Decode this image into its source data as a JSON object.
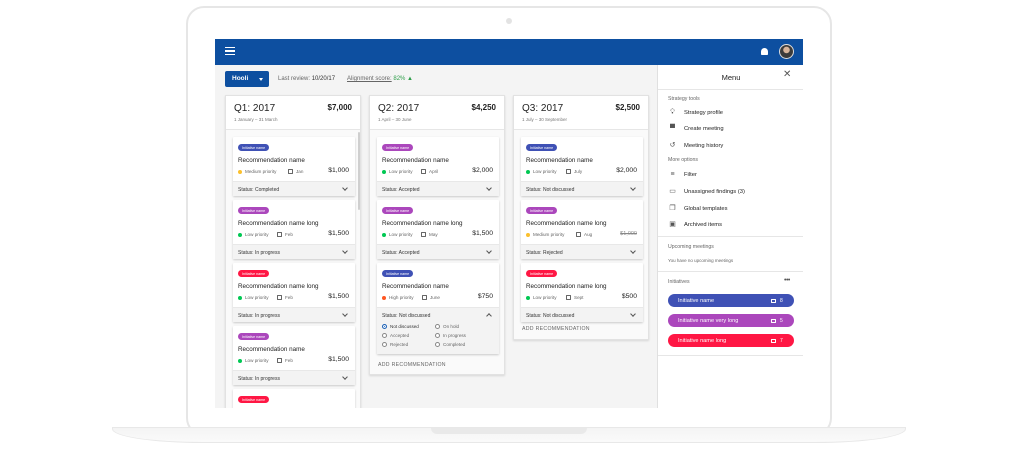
{
  "app": {
    "org_button": "Hooli",
    "last_review_label": "Last review:",
    "last_review_value": "10/20/17",
    "alignment_label": "Alignment score:",
    "alignment_value": "82% ▲",
    "colors": {
      "appbar": "#0d4fa0",
      "blue_chip": "#3f51b5",
      "purple_chip": "#ab47bc",
      "red_chip": "#ff1744",
      "priority_medium": "#fbc02d",
      "priority_low": "#00c853",
      "priority_high": "#ff5722"
    }
  },
  "quarters": [
    {
      "title": "Q1: 2017",
      "amount": "$7,000",
      "range": "1 January – 31 March",
      "cards": [
        {
          "initiative": "Initiative name",
          "name": "Recommendation name",
          "priority": "Medium priority",
          "month": "Jan",
          "price": "$1,000",
          "status": "Status: Completed"
        },
        {
          "initiative": "Initiative name",
          "name": "Recommendation name long",
          "priority": "Low priority",
          "month": "Feb",
          "price": "$1,500",
          "status": "Status: In progress"
        },
        {
          "initiative": "Initiative name",
          "name": "Recommendation name long",
          "priority": "Low priority",
          "month": "Feb",
          "price": "$1,500",
          "status": "Status: In progress"
        },
        {
          "initiative": "Initiative name",
          "name": "Recommendation name",
          "priority": "Low priority",
          "month": "Feb",
          "price": "$1,500",
          "status": "Status: In progress"
        },
        {
          "initiative": "Initiative name"
        }
      ]
    },
    {
      "title": "Q2: 2017",
      "amount": "$4,250",
      "range": "1 April – 30 June",
      "cards": [
        {
          "initiative": "Initiative name",
          "name": "Recommendation name",
          "priority": "Low priority",
          "month": "April",
          "price": "$2,000",
          "status": "Status: Accepted"
        },
        {
          "initiative": "Initiative name",
          "name": "Recommendation name long",
          "priority": "Low priority",
          "month": "May",
          "price": "$1,500",
          "status": "Status: Accepted"
        },
        {
          "initiative": "Initiative name",
          "name": "Recommendation name",
          "priority": "High priority",
          "month": "June",
          "price": "$750",
          "status": "Status: Not discussed",
          "options": [
            "Not discussed",
            "On hold",
            "Accepted",
            "In progress",
            "Rejected",
            "Completed"
          ],
          "selected_option": "Not discussed"
        }
      ],
      "add_label": "ADD RECOMMENDATION"
    },
    {
      "title": "Q3: 2017",
      "amount": "$2,500",
      "range": "1 July – 30 September",
      "cards": [
        {
          "initiative": "Initiative name",
          "name": "Recommendation name",
          "priority": "Low priority",
          "month": "July",
          "price": "$2,000",
          "status": "Status: Not discussed"
        },
        {
          "initiative": "Initiative name",
          "name": "Recommendation name long",
          "priority": "Medium priority",
          "month": "Aug",
          "price": "$1,000",
          "status": "Status: Rejected"
        },
        {
          "initiative": "Initiative name",
          "name": "Recommendation name long",
          "priority": "Low priority",
          "month": "Sept",
          "price": "$500",
          "status": "Status: Not discussed"
        }
      ],
      "add_label": "ADD RECOMMENDATION"
    }
  ],
  "panel": {
    "title": "Menu",
    "strategy_tools_label": "Strategy tools",
    "strategy_tools": [
      {
        "label": "Strategy profile",
        "icon": "lightbulb-icon"
      },
      {
        "label": "Create meeting",
        "icon": "meeting-icon"
      },
      {
        "label": "Meeting history",
        "icon": "history-icon"
      }
    ],
    "more_options_label": "More options",
    "more_options": [
      {
        "label": "Filter",
        "icon": "filter-icon"
      },
      {
        "label": "Unassigned findings (3)",
        "icon": "folder-icon"
      },
      {
        "label": "Global templates",
        "icon": "copy-icon"
      },
      {
        "label": "Archived items",
        "icon": "archive-icon"
      }
    ],
    "upcoming_label": "Upcoming meetings",
    "upcoming_empty": "You have no upcoming meetings",
    "initiatives_label": "Initiatives",
    "initiatives": [
      {
        "name": "Initiative name",
        "count": "8",
        "color": "#3f51b5"
      },
      {
        "name": "Initiative name very long",
        "count": "5",
        "color": "#ab47bc"
      },
      {
        "name": "Initiative name long",
        "count": "7",
        "color": "#ff1744"
      }
    ]
  }
}
